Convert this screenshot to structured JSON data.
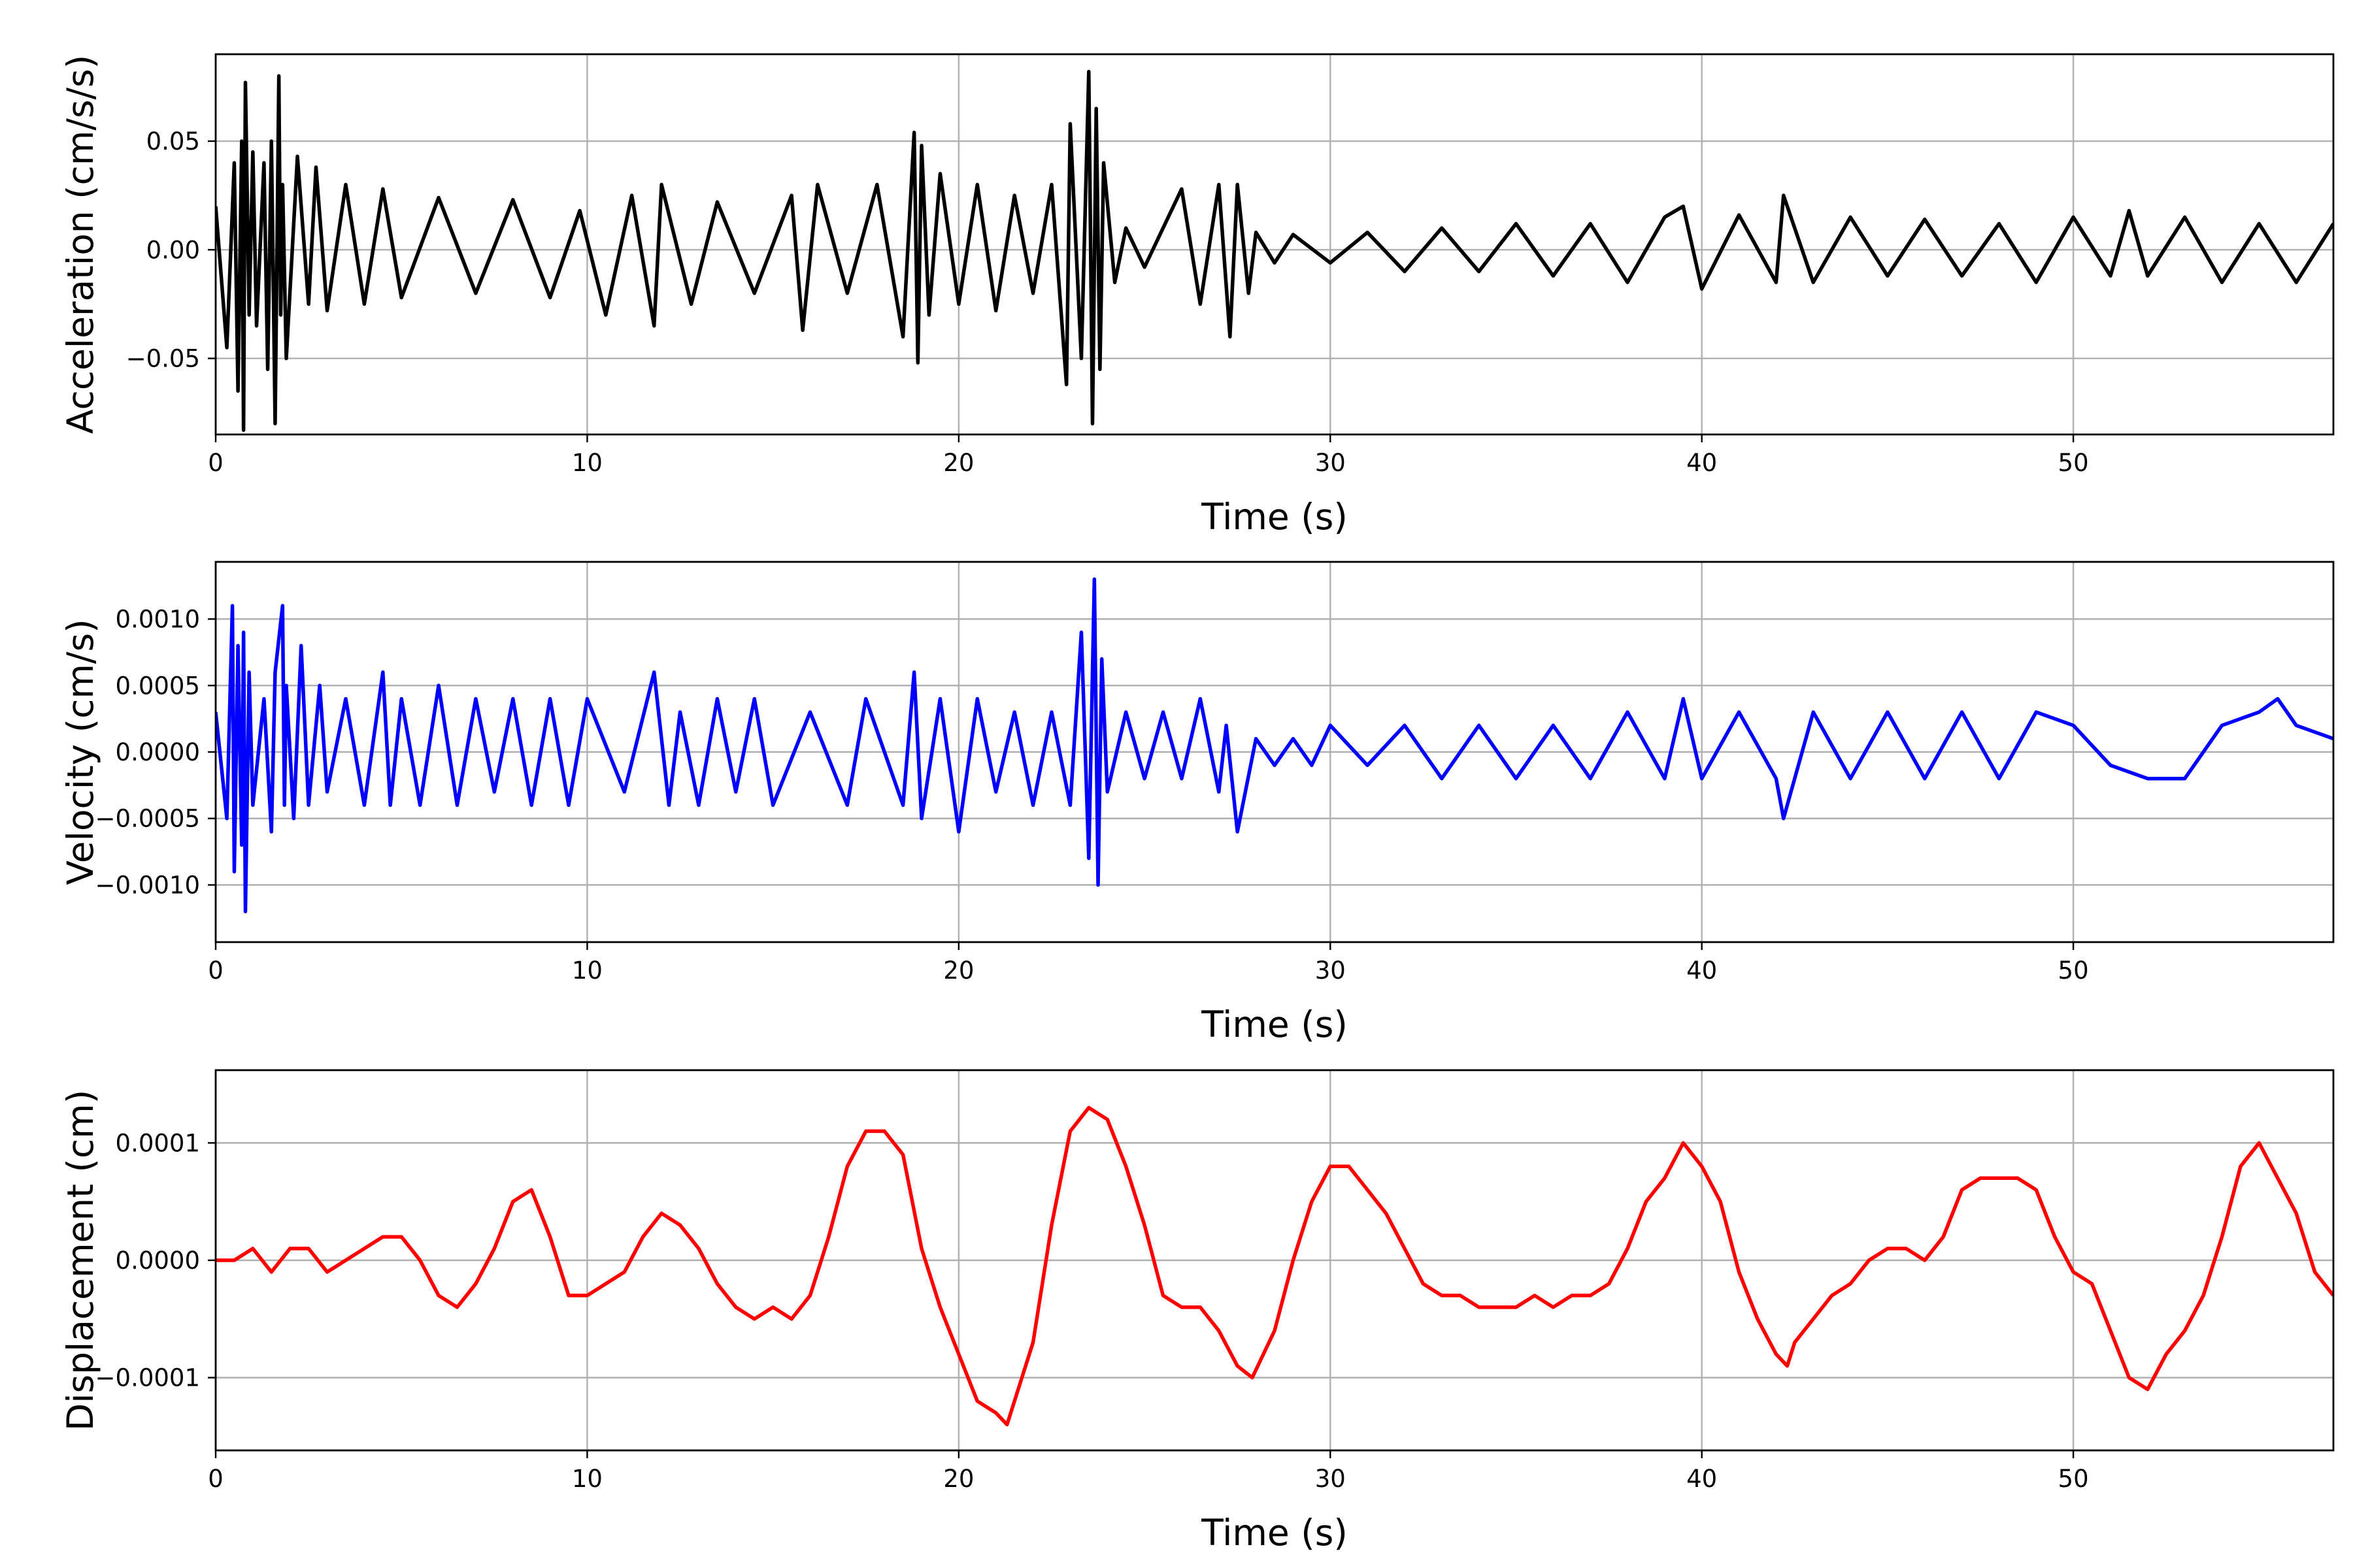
{
  "chart_data": [
    {
      "type": "line",
      "xlabel": "Time (s)",
      "ylabel": "Acceleration (cm/s/s)",
      "xlim": [
        0,
        57
      ],
      "ylim": [
        -0.085,
        0.09
      ],
      "xticks": [
        0,
        10,
        20,
        30,
        40,
        50
      ],
      "yticks": [
        -0.05,
        0.0,
        0.05
      ],
      "ytick_labels": [
        "−0.05",
        "0.00",
        "0.05"
      ],
      "grid": true,
      "series": [
        {
          "color": "#000000",
          "x": [
            0,
            0.3,
            0.5,
            0.6,
            0.7,
            0.75,
            0.8,
            0.9,
            1.0,
            1.1,
            1.3,
            1.4,
            1.5,
            1.6,
            1.7,
            1.75,
            1.8,
            1.9,
            2.2,
            2.5,
            2.7,
            3.0,
            3.5,
            4.0,
            4.5,
            5.0,
            6.0,
            7.0,
            8.0,
            9.0,
            9.8,
            10.5,
            11.2,
            11.8,
            12.0,
            12.8,
            13.5,
            14.5,
            15.5,
            15.8,
            16.2,
            17.0,
            17.8,
            18.5,
            18.8,
            18.9,
            19.0,
            19.2,
            19.5,
            20.0,
            20.5,
            21.0,
            21.5,
            22.0,
            22.5,
            22.9,
            23.0,
            23.3,
            23.5,
            23.6,
            23.7,
            23.8,
            23.9,
            24.2,
            24.5,
            25.0,
            25.5,
            26.0,
            26.5,
            27.0,
            27.3,
            27.5,
            27.8,
            28.0,
            28.5,
            29.0,
            30.0,
            31.0,
            32.0,
            33.0,
            34.0,
            35.0,
            36.0,
            37.0,
            38.0,
            39.0,
            39.5,
            40.0,
            41.0,
            42.0,
            42.2,
            43.0,
            44.0,
            45.0,
            46.0,
            47.0,
            48.0,
            49.0,
            50.0,
            51.0,
            51.5,
            52.0,
            53.0,
            54.0,
            55.0,
            56.0,
            57.0
          ],
          "y": [
            0.02,
            -0.045,
            0.04,
            -0.065,
            0.05,
            -0.083,
            0.077,
            -0.03,
            0.045,
            -0.035,
            0.04,
            -0.055,
            0.05,
            -0.08,
            0.08,
            -0.03,
            0.03,
            -0.05,
            0.043,
            -0.025,
            0.038,
            -0.028,
            0.03,
            -0.025,
            0.028,
            -0.022,
            0.024,
            -0.02,
            0.023,
            -0.022,
            0.018,
            -0.03,
            0.025,
            -0.035,
            0.03,
            -0.025,
            0.022,
            -0.02,
            0.025,
            -0.037,
            0.03,
            -0.02,
            0.03,
            -0.04,
            0.054,
            -0.052,
            0.048,
            -0.03,
            0.035,
            -0.025,
            0.03,
            -0.028,
            0.025,
            -0.02,
            0.03,
            -0.062,
            0.058,
            -0.05,
            0.082,
            -0.08,
            0.065,
            -0.055,
            0.04,
            -0.015,
            0.01,
            -0.008,
            0.01,
            0.028,
            -0.025,
            0.03,
            -0.04,
            0.03,
            -0.02,
            0.008,
            -0.006,
            0.007,
            -0.006,
            0.008,
            -0.01,
            0.01,
            -0.01,
            0.012,
            -0.012,
            0.012,
            -0.015,
            0.015,
            0.02,
            -0.018,
            0.016,
            -0.015,
            0.025,
            -0.015,
            0.015,
            -0.012,
            0.014,
            -0.012,
            0.012,
            -0.015,
            0.015,
            -0.012,
            0.018,
            -0.012,
            0.015,
            -0.015,
            0.012,
            -0.015,
            0.012
          ]
        }
      ]
    },
    {
      "type": "line",
      "xlabel": "Time (s)",
      "ylabel": "Velocity (cm/s)",
      "xlim": [
        0,
        57
      ],
      "ylim": [
        -0.00143,
        0.00143
      ],
      "xticks": [
        0,
        10,
        20,
        30,
        40,
        50
      ],
      "yticks": [
        -0.001,
        -0.0005,
        0.0,
        0.0005,
        0.001
      ],
      "ytick_labels": [
        "−0.0010",
        "−0.0005",
        "0.0000",
        "0.0005",
        "0.0010"
      ],
      "grid": true,
      "series": [
        {
          "color": "#0000ff",
          "x": [
            0,
            0.3,
            0.45,
            0.5,
            0.6,
            0.7,
            0.75,
            0.8,
            0.9,
            1.0,
            1.3,
            1.5,
            1.6,
            1.8,
            1.85,
            1.9,
            2.1,
            2.3,
            2.5,
            2.8,
            3.0,
            3.5,
            4.0,
            4.5,
            4.7,
            5.0,
            5.5,
            6.0,
            6.5,
            7.0,
            7.5,
            8.0,
            8.5,
            9.0,
            9.5,
            10.0,
            11.0,
            11.8,
            12.2,
            12.5,
            13.0,
            13.5,
            14.0,
            14.5,
            15.0,
            16.0,
            17.0,
            17.5,
            18.5,
            18.8,
            19.0,
            19.5,
            20.0,
            20.5,
            21.0,
            21.5,
            22.0,
            22.5,
            23.0,
            23.3,
            23.5,
            23.65,
            23.75,
            23.85,
            24.0,
            24.5,
            25.0,
            25.5,
            26.0,
            26.5,
            27.0,
            27.2,
            27.5,
            28.0,
            28.5,
            29.0,
            29.5,
            30.0,
            31.0,
            32.0,
            33.0,
            34.0,
            35.0,
            36.0,
            37.0,
            38.0,
            39.0,
            39.5,
            40.0,
            41.0,
            42.0,
            42.2,
            43.0,
            44.0,
            45.0,
            46.0,
            47.0,
            48.0,
            49.0,
            50.0,
            51.0,
            52.0,
            53.0,
            54.0,
            55.0,
            55.5,
            56.0,
            57.0
          ],
          "y": [
            0.0003,
            -0.0005,
            0.0011,
            -0.0009,
            0.0008,
            -0.0007,
            0.0009,
            -0.0012,
            0.0006,
            -0.0004,
            0.0004,
            -0.0006,
            0.0006,
            0.0011,
            -0.0004,
            0.0005,
            -0.0005,
            0.0008,
            -0.0004,
            0.0005,
            -0.0003,
            0.0004,
            -0.0004,
            0.0006,
            -0.0004,
            0.0004,
            -0.0004,
            0.0005,
            -0.0004,
            0.0004,
            -0.0003,
            0.0004,
            -0.0004,
            0.0004,
            -0.0004,
            0.0004,
            -0.0003,
            0.0006,
            -0.0004,
            0.0003,
            -0.0004,
            0.0004,
            -0.0003,
            0.0004,
            -0.0004,
            0.0003,
            -0.0004,
            0.0004,
            -0.0004,
            0.0006,
            -0.0005,
            0.0004,
            -0.0006,
            0.0004,
            -0.0003,
            0.0003,
            -0.0004,
            0.0003,
            -0.0004,
            0.0009,
            -0.0008,
            0.0013,
            -0.001,
            0.0007,
            -0.0003,
            0.0003,
            -0.0002,
            0.0003,
            -0.0002,
            0.0004,
            -0.0003,
            0.0002,
            -0.0006,
            0.0001,
            -0.0001,
            0.0001,
            -0.0001,
            0.0002,
            -0.0001,
            0.0002,
            -0.0002,
            0.0002,
            -0.0002,
            0.0002,
            -0.0002,
            0.0003,
            -0.0002,
            0.0004,
            -0.0002,
            0.0003,
            -0.0002,
            -0.0005,
            0.0003,
            -0.0002,
            0.0003,
            -0.0002,
            0.0003,
            -0.0002,
            0.0003,
            0.0002,
            -0.0001,
            -0.0002,
            -0.0002,
            0.0002,
            0.0003,
            0.0004,
            0.0002,
            0.0001
          ]
        }
      ]
    },
    {
      "type": "line",
      "xlabel": "Time (s)",
      "ylabel": "Displacement (cm)",
      "xlim": [
        0,
        57
      ],
      "ylim": [
        -0.000162,
        0.000162
      ],
      "xticks": [
        0,
        10,
        20,
        30,
        40,
        50
      ],
      "yticks": [
        -0.0001,
        0.0,
        0.0001
      ],
      "ytick_labels": [
        "−0.0001",
        "0.0000",
        "0.0001"
      ],
      "grid": true,
      "series": [
        {
          "color": "#ff0000",
          "x": [
            0,
            0.5,
            1.0,
            1.5,
            2.0,
            2.5,
            3.0,
            3.5,
            4.0,
            4.5,
            5.0,
            5.5,
            6.0,
            6.5,
            7.0,
            7.5,
            8.0,
            8.5,
            9.0,
            9.5,
            10.0,
            10.5,
            11.0,
            11.5,
            12.0,
            12.5,
            13.0,
            13.5,
            14.0,
            14.5,
            15.0,
            15.5,
            16.0,
            16.5,
            17.0,
            17.5,
            18.0,
            18.5,
            19.0,
            19.5,
            20.0,
            20.5,
            21.0,
            21.3,
            21.5,
            22.0,
            22.5,
            23.0,
            23.5,
            24.0,
            24.5,
            25.0,
            25.5,
            26.0,
            26.5,
            27.0,
            27.5,
            27.9,
            28.5,
            29.0,
            29.5,
            30.0,
            30.5,
            31.0,
            31.5,
            32.0,
            32.5,
            33.0,
            33.5,
            34.0,
            34.5,
            35.0,
            35.5,
            36.0,
            36.5,
            37.0,
            37.5,
            38.0,
            38.5,
            39.0,
            39.5,
            40.0,
            40.5,
            41.0,
            41.5,
            42.0,
            42.3,
            42.5,
            43.0,
            43.5,
            44.0,
            44.5,
            45.0,
            45.5,
            46.0,
            46.5,
            47.0,
            47.5,
            48.0,
            48.5,
            49.0,
            49.5,
            50.0,
            50.5,
            51.0,
            51.5,
            52.0,
            52.5,
            53.0,
            53.5,
            54.0,
            54.5,
            55.0,
            55.5,
            56.0,
            56.5,
            57.0
          ],
          "y": [
            0.0,
            0.0,
            1e-05,
            -1e-05,
            1e-05,
            1e-05,
            -1e-05,
            0.0,
            1e-05,
            2e-05,
            2e-05,
            0.0,
            -3e-05,
            -4e-05,
            -2e-05,
            1e-05,
            5e-05,
            6e-05,
            2e-05,
            -3e-05,
            -3e-05,
            -2e-05,
            -1e-05,
            2e-05,
            4e-05,
            3e-05,
            1e-05,
            -2e-05,
            -4e-05,
            -5e-05,
            -4e-05,
            -5e-05,
            -3e-05,
            2e-05,
            8e-05,
            0.00011,
            0.00011,
            9e-05,
            1e-05,
            -4e-05,
            -8e-05,
            -0.00012,
            -0.00013,
            -0.00014,
            -0.00012,
            -7e-05,
            3e-05,
            0.00011,
            0.00013,
            0.00012,
            8e-05,
            3e-05,
            -3e-05,
            -4e-05,
            -4e-05,
            -6e-05,
            -9e-05,
            -0.0001,
            -6e-05,
            0.0,
            5e-05,
            8e-05,
            8e-05,
            6e-05,
            4e-05,
            1e-05,
            -2e-05,
            -3e-05,
            -3e-05,
            -4e-05,
            -4e-05,
            -4e-05,
            -3e-05,
            -4e-05,
            -3e-05,
            -3e-05,
            -2e-05,
            1e-05,
            5e-05,
            7e-05,
            0.0001,
            8e-05,
            5e-05,
            -1e-05,
            -5e-05,
            -8e-05,
            -9e-05,
            -7e-05,
            -5e-05,
            -3e-05,
            -2e-05,
            0.0,
            1e-05,
            1e-05,
            0.0,
            2e-05,
            6e-05,
            7e-05,
            7e-05,
            7e-05,
            6e-05,
            2e-05,
            -1e-05,
            -2e-05,
            -6e-05,
            -0.0001,
            -0.00011,
            -8e-05,
            -6e-05,
            -3e-05,
            2e-05,
            8e-05,
            0.0001,
            7e-05,
            4e-05,
            -1e-05,
            -3e-05
          ]
        }
      ]
    }
  ]
}
